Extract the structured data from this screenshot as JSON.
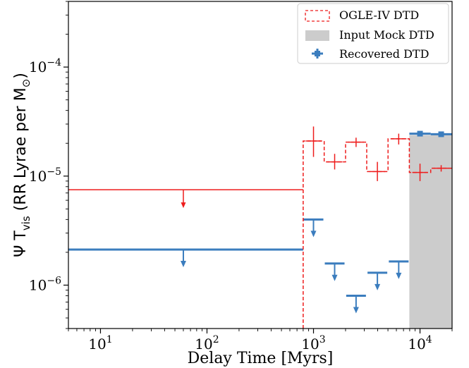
{
  "chart_data": {
    "type": "line",
    "xlabel": "Delay Time [Myrs]",
    "ylabel": {
      "main": "Ψ T",
      "sub1": "vis",
      "middle": " (RR Lyrae per M",
      "sub2": "⊙",
      "end": ")"
    },
    "xscale": "log",
    "yscale": "log",
    "xlim": [
      5,
      20000
    ],
    "ylim": [
      4e-07,
      0.0004
    ],
    "x_ticks": [
      {
        "value": 10,
        "base": "10",
        "exp": "1"
      },
      {
        "value": 100,
        "base": "10",
        "exp": "2"
      },
      {
        "value": 1000,
        "base": "10",
        "exp": "3"
      },
      {
        "value": 10000,
        "base": "10",
        "exp": "4"
      }
    ],
    "y_ticks": [
      {
        "value": 1e-06,
        "base": "10",
        "exp": "−6"
      },
      {
        "value": 1e-05,
        "base": "10",
        "exp": "−5"
      },
      {
        "value": 0.0001,
        "base": "10",
        "exp": "−4"
      }
    ],
    "legend": {
      "position": "top-right",
      "entries": [
        "OGLE-IV DTD",
        "Input Mock DTD",
        "Recovered DTD"
      ]
    },
    "colors": {
      "ogle": "#ee1c1c",
      "recovered": "#3b7dbe",
      "mock": "#cccccc"
    },
    "series": [
      {
        "name": "OGLE-IV DTD",
        "style": "dashed-step",
        "upper_limits": [
          {
            "x_lo": 5,
            "x_hi": 800,
            "y": 7.5e-06,
            "x_arrow": 60
          }
        ],
        "steps": [
          {
            "x_lo": 800,
            "x_hi": 1260,
            "y": 2.1e-05
          },
          {
            "x_lo": 1260,
            "x_hi": 2000,
            "y": 1.35e-05
          },
          {
            "x_lo": 2000,
            "x_hi": 3160,
            "y": 2.05e-05
          },
          {
            "x_lo": 3160,
            "x_hi": 5010,
            "y": 1.1e-05
          },
          {
            "x_lo": 5010,
            "x_hi": 7940,
            "y": 2.2e-05
          },
          {
            "x_lo": 7940,
            "x_hi": 12600,
            "y": 1.08e-05
          },
          {
            "x_lo": 12600,
            "x_hi": 20000,
            "y": 1.18e-05
          }
        ],
        "points": [
          {
            "x": 1000,
            "y": 2.1e-05,
            "y_lo": 1.5e-05,
            "y_hi": 2.85e-05
          },
          {
            "x": 1580,
            "y": 1.35e-05,
            "y_lo": 1.15e-05,
            "y_hi": 1.6e-05
          },
          {
            "x": 2510,
            "y": 2.05e-05,
            "y_lo": 1.85e-05,
            "y_hi": 2.25e-05
          },
          {
            "x": 3980,
            "y": 1.1e-05,
            "y_lo": 9e-06,
            "y_hi": 1.35e-05
          },
          {
            "x": 6310,
            "y": 2.2e-05,
            "y_lo": 1.95e-05,
            "y_hi": 2.45e-05
          },
          {
            "x": 10000,
            "y": 1.08e-05,
            "y_lo": 9e-06,
            "y_hi": 1.3e-05
          },
          {
            "x": 15800,
            "y": 1.18e-05,
            "y_lo": 1.1e-05,
            "y_hi": 1.26e-05
          }
        ]
      },
      {
        "name": "Input Mock DTD",
        "style": "filled-step",
        "steps": [
          {
            "x_lo": 7940,
            "x_hi": 20000,
            "y": 2.38e-05
          }
        ]
      },
      {
        "name": "Recovered DTD",
        "style": "points",
        "upper_limits": [
          {
            "x_lo": 5,
            "x_hi": 800,
            "y": 2.12e-06,
            "x_arrow": 60
          },
          {
            "x_lo": 800,
            "x_hi": 1260,
            "y": 4e-06,
            "x_arrow": 1000
          },
          {
            "x_lo": 1260,
            "x_hi": 2000,
            "y": 1.58e-06,
            "x_arrow": 1580
          },
          {
            "x_lo": 2000,
            "x_hi": 3160,
            "y": 8e-07,
            "x_arrow": 2510
          },
          {
            "x_lo": 3160,
            "x_hi": 5010,
            "y": 1.3e-06,
            "x_arrow": 3980
          },
          {
            "x_lo": 5010,
            "x_hi": 7940,
            "y": 1.65e-06,
            "x_arrow": 6310
          }
        ],
        "points": [
          {
            "x_lo": 7940,
            "x_hi": 12600,
            "x": 10000,
            "y": 2.45e-05,
            "y_lo": 2.36e-05,
            "y_hi": 2.54e-05
          },
          {
            "x_lo": 12600,
            "x_hi": 20000,
            "x": 15800,
            "y": 2.42e-05,
            "y_lo": 2.34e-05,
            "y_hi": 2.5e-05
          }
        ]
      }
    ]
  }
}
